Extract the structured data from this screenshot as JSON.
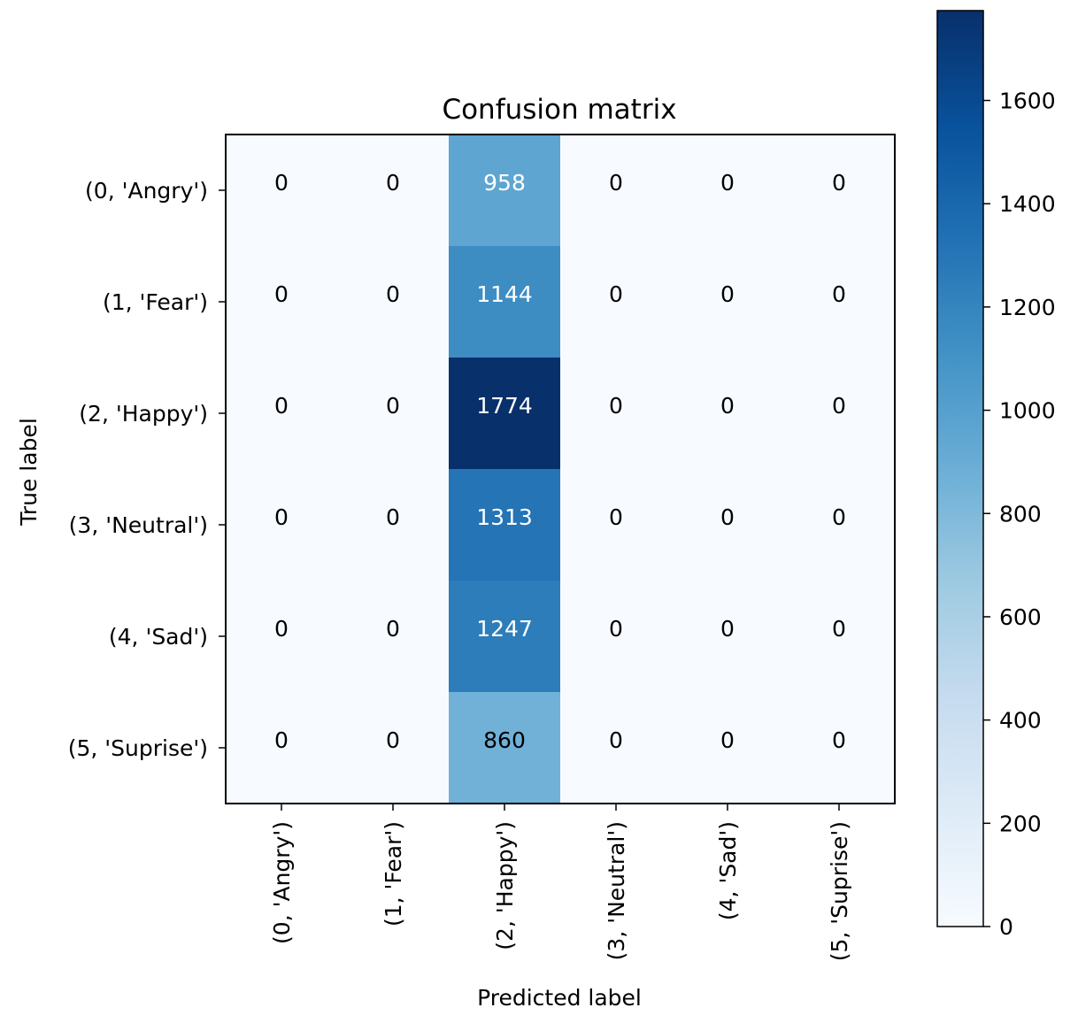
{
  "chart_data": {
    "type": "heatmap",
    "title": "Confusion matrix",
    "xlabel": "Predicted label",
    "ylabel": "True label",
    "x_tick_labels": [
      "(0, 'Angry')",
      "(1, 'Fear')",
      "(2, 'Happy')",
      "(3, 'Neutral')",
      "(4, 'Sad')",
      "(5, 'Suprise')"
    ],
    "y_tick_labels": [
      "(0, 'Angry')",
      "(1, 'Fear')",
      "(2, 'Happy')",
      "(3, 'Neutral')",
      "(4, 'Sad')",
      "(5, 'Suprise')"
    ],
    "matrix": [
      [
        0,
        0,
        958,
        0,
        0,
        0
      ],
      [
        0,
        0,
        1144,
        0,
        0,
        0
      ],
      [
        0,
        0,
        1774,
        0,
        0,
        0
      ],
      [
        0,
        0,
        1313,
        0,
        0,
        0
      ],
      [
        0,
        0,
        1247,
        0,
        0,
        0
      ],
      [
        0,
        0,
        860,
        0,
        0,
        0
      ]
    ],
    "colormap": "Blues",
    "vmin": 0,
    "vmax": 1774,
    "text_threshold": 887,
    "colorbar_ticks": [
      0,
      200,
      400,
      600,
      800,
      1000,
      1200,
      1400,
      1600
    ]
  }
}
